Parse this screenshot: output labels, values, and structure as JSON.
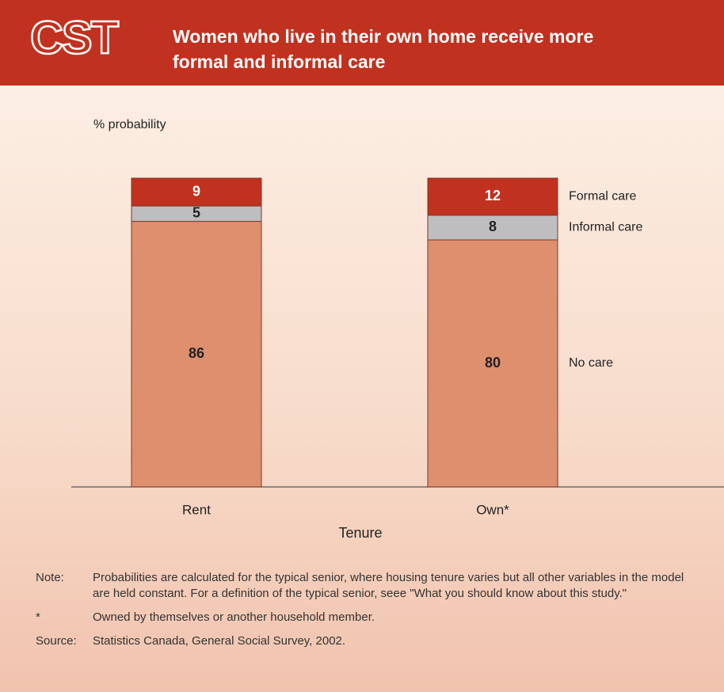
{
  "chart_data": {
    "type": "stacked_bar",
    "logo": "CST",
    "title": [
      "Women who live in their own home receive more",
      "formal and informal care"
    ],
    "ylabel": "% probability",
    "xlabel": "Tenure",
    "categories": [
      "Rent",
      "Own*"
    ],
    "series": [
      {
        "name": "No care",
        "color": "#de8f6e",
        "values": [
          86,
          80
        ]
      },
      {
        "name": "Informal care",
        "color": "#bebdbf",
        "values": [
          5,
          8
        ]
      },
      {
        "name": "Formal care",
        "color": "#c1311f",
        "values": [
          9,
          12
        ]
      }
    ],
    "ylim": [
      0,
      100
    ],
    "notes": [
      {
        "label": "Note:",
        "text": "Probabilities are calculated for the typical senior, where housing tenure varies but all other variables in the model are held constant. For a definition of the typical senior, seee \"What you should know about this study.\""
      },
      {
        "label": "*",
        "text": "Owned by themselves or another household member."
      },
      {
        "label": "Source:",
        "text": "Statistics Canada, General Social Survey, 2002."
      }
    ]
  }
}
